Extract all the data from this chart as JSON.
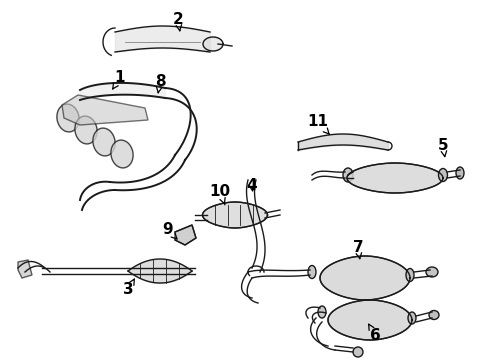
{
  "bg_color": "#ffffff",
  "line_color": "#1a1a1a",
  "label_color": "#000000",
  "label_fontsize": 11,
  "label_fontweight": "bold",
  "figsize": [
    4.9,
    3.6
  ],
  "dpi": 100
}
